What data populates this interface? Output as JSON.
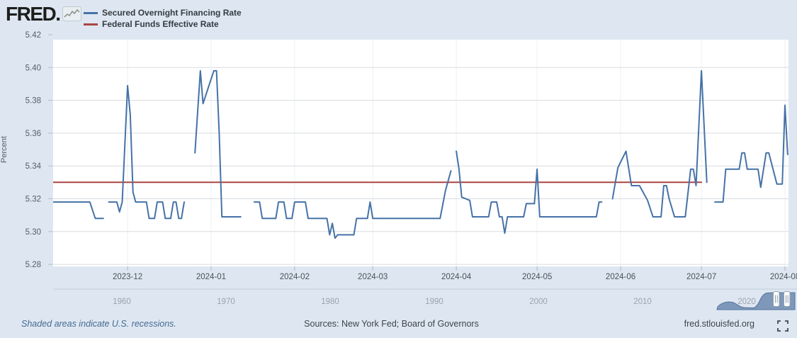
{
  "brand": {
    "logo_text": "FRED.",
    "logo_icon": "fred-sparkline-icon"
  },
  "legend": {
    "items": [
      {
        "label": "Secured Overnight Financing Rate",
        "color": "#4572a7"
      },
      {
        "label": "Federal Funds Effective Rate",
        "color": "#aa4643"
      }
    ]
  },
  "chart_data": {
    "type": "line",
    "title": "",
    "xlabel": "",
    "ylabel": "Percent",
    "ylim": [
      5.28,
      5.42
    ],
    "grid": true,
    "legend_position": "top-left",
    "y_ticks": [
      5.42,
      5.4,
      5.38,
      5.36,
      5.34,
      5.32,
      5.3,
      5.28
    ],
    "x_ticks": [
      {
        "date": "2023-12-01",
        "label": "2023-12"
      },
      {
        "date": "2024-01-01",
        "label": "2024-01"
      },
      {
        "date": "2024-02-01",
        "label": "2024-02"
      },
      {
        "date": "2024-03-01",
        "label": "2024-03"
      },
      {
        "date": "2024-04-01",
        "label": "2024-04"
      },
      {
        "date": "2024-05-01",
        "label": "2024-05"
      },
      {
        "date": "2024-06-01",
        "label": "2024-06"
      },
      {
        "date": "2024-07-01",
        "label": "2024-07"
      },
      {
        "date": "2024-08-01",
        "label": "2024-08"
      }
    ],
    "x_range": [
      "2023-11-01",
      "2024-08-03"
    ],
    "series": [
      {
        "name": "Secured Overnight Financing Rate",
        "color": "#4572a7",
        "segments": [
          [
            [
              "2023-11-01",
              5.318
            ],
            [
              "2023-11-17",
              5.318
            ],
            [
              "2023-11-19",
              5.308
            ],
            [
              "2023-11-22",
              5.308
            ]
          ],
          [
            [
              "2023-11-24",
              5.318
            ],
            [
              "2023-11-27",
              5.318
            ],
            [
              "2023-11-28",
              5.312
            ],
            [
              "2023-11-29",
              5.318
            ],
            [
              "2023-12-01",
              5.389
            ],
            [
              "2023-12-02",
              5.371
            ],
            [
              "2023-12-03",
              5.324
            ],
            [
              "2023-12-04",
              5.318
            ],
            [
              "2023-12-08",
              5.318
            ],
            [
              "2023-12-09",
              5.308
            ],
            [
              "2023-12-11",
              5.308
            ],
            [
              "2023-12-12",
              5.318
            ],
            [
              "2023-12-14",
              5.318
            ],
            [
              "2023-12-15",
              5.308
            ],
            [
              "2023-12-17",
              5.308
            ],
            [
              "2023-12-18",
              5.318
            ],
            [
              "2023-12-19",
              5.318
            ],
            [
              "2023-12-20",
              5.308
            ],
            [
              "2023-12-21",
              5.308
            ],
            [
              "2023-12-22",
              5.318
            ]
          ],
          [
            [
              "2023-12-26",
              5.348
            ],
            [
              "2023-12-28",
              5.398
            ],
            [
              "2023-12-29",
              5.378
            ],
            [
              "2024-01-02",
              5.398
            ],
            [
              "2024-01-03",
              5.398
            ],
            [
              "2024-01-04",
              5.36
            ],
            [
              "2024-01-05",
              5.309
            ],
            [
              "2024-01-12",
              5.309
            ]
          ],
          [
            [
              "2024-01-17",
              5.318
            ],
            [
              "2024-01-19",
              5.318
            ],
            [
              "2024-01-20",
              5.308
            ],
            [
              "2024-01-25",
              5.308
            ],
            [
              "2024-01-26",
              5.318
            ],
            [
              "2024-01-28",
              5.318
            ],
            [
              "2024-01-29",
              5.308
            ],
            [
              "2024-01-31",
              5.308
            ],
            [
              "2024-02-01",
              5.318
            ],
            [
              "2024-02-05",
              5.318
            ],
            [
              "2024-02-06",
              5.308
            ],
            [
              "2024-02-13",
              5.308
            ],
            [
              "2024-02-14",
              5.298
            ],
            [
              "2024-02-15",
              5.305
            ],
            [
              "2024-02-16",
              5.296
            ],
            [
              "2024-02-17",
              5.298
            ],
            [
              "2024-02-23",
              5.298
            ],
            [
              "2024-02-24",
              5.308
            ],
            [
              "2024-02-28",
              5.308
            ],
            [
              "2024-02-29",
              5.318
            ],
            [
              "2024-03-01",
              5.308
            ],
            [
              "2024-03-26",
              5.308
            ],
            [
              "2024-03-28",
              5.325
            ],
            [
              "2024-03-30",
              5.337
            ]
          ],
          [
            [
              "2024-04-01",
              5.349
            ],
            [
              "2024-04-02",
              5.338
            ],
            [
              "2024-04-03",
              5.321
            ],
            [
              "2024-04-06",
              5.319
            ],
            [
              "2024-04-07",
              5.309
            ],
            [
              "2024-04-13",
              5.309
            ],
            [
              "2024-04-14",
              5.318
            ],
            [
              "2024-04-16",
              5.318
            ],
            [
              "2024-04-17",
              5.309
            ],
            [
              "2024-04-18",
              5.309
            ],
            [
              "2024-04-19",
              5.299
            ],
            [
              "2024-04-20",
              5.309
            ],
            [
              "2024-04-26",
              5.309
            ],
            [
              "2024-04-27",
              5.317
            ],
            [
              "2024-04-30",
              5.317
            ],
            [
              "2024-05-01",
              5.338
            ],
            [
              "2024-05-02",
              5.309
            ],
            [
              "2024-05-23",
              5.309
            ],
            [
              "2024-05-24",
              5.318
            ],
            [
              "2024-05-25",
              5.318
            ]
          ],
          [
            [
              "2024-05-29",
              5.32
            ],
            [
              "2024-05-31",
              5.339
            ],
            [
              "2024-06-03",
              5.349
            ],
            [
              "2024-06-05",
              5.328
            ],
            [
              "2024-06-08",
              5.328
            ],
            [
              "2024-06-11",
              5.319
            ],
            [
              "2024-06-13",
              5.309
            ],
            [
              "2024-06-16",
              5.309
            ],
            [
              "2024-06-17",
              5.328
            ],
            [
              "2024-06-18",
              5.328
            ],
            [
              "2024-06-19",
              5.32
            ],
            [
              "2024-06-21",
              5.309
            ],
            [
              "2024-06-25",
              5.309
            ],
            [
              "2024-06-27",
              5.338
            ],
            [
              "2024-06-28",
              5.338
            ],
            [
              "2024-06-29",
              5.328
            ],
            [
              "2024-07-01",
              5.398
            ],
            [
              "2024-07-03",
              5.33
            ]
          ],
          [
            [
              "2024-07-06",
              5.318
            ],
            [
              "2024-07-09",
              5.318
            ],
            [
              "2024-07-10",
              5.338
            ],
            [
              "2024-07-15",
              5.338
            ],
            [
              "2024-07-16",
              5.348
            ],
            [
              "2024-07-17",
              5.348
            ],
            [
              "2024-07-18",
              5.338
            ],
            [
              "2024-07-22",
              5.338
            ],
            [
              "2024-07-23",
              5.327
            ],
            [
              "2024-07-25",
              5.348
            ],
            [
              "2024-07-26",
              5.348
            ],
            [
              "2024-07-29",
              5.329
            ],
            [
              "2024-07-31",
              5.329
            ],
            [
              "2024-08-01",
              5.377
            ],
            [
              "2024-08-02",
              5.347
            ]
          ]
        ]
      },
      {
        "name": "Federal Funds Effective Rate",
        "color": "#aa4643",
        "segments": [
          [
            [
              "2023-11-01",
              5.33
            ],
            [
              "2024-07-01",
              5.33
            ]
          ]
        ]
      }
    ]
  },
  "timeline": {
    "decade_labels": [
      "1960",
      "1970",
      "1980",
      "1990",
      "2000",
      "2010",
      "2020"
    ],
    "slider": {
      "handles": [
        "range-start",
        "range-end"
      ]
    }
  },
  "footer": {
    "recession_note": "Shaded areas indicate U.S. recessions.",
    "sources": "Sources: New York Fed; Board of Governors",
    "site": "fred.stlouisfed.org"
  },
  "colors": {
    "background": "#dee7f1",
    "plot_background": "#ffffff",
    "gridline": "#d8dce1",
    "sofr_line": "#4572a7",
    "effr_line": "#aa4643",
    "slider_fill": "#7e98ba"
  }
}
